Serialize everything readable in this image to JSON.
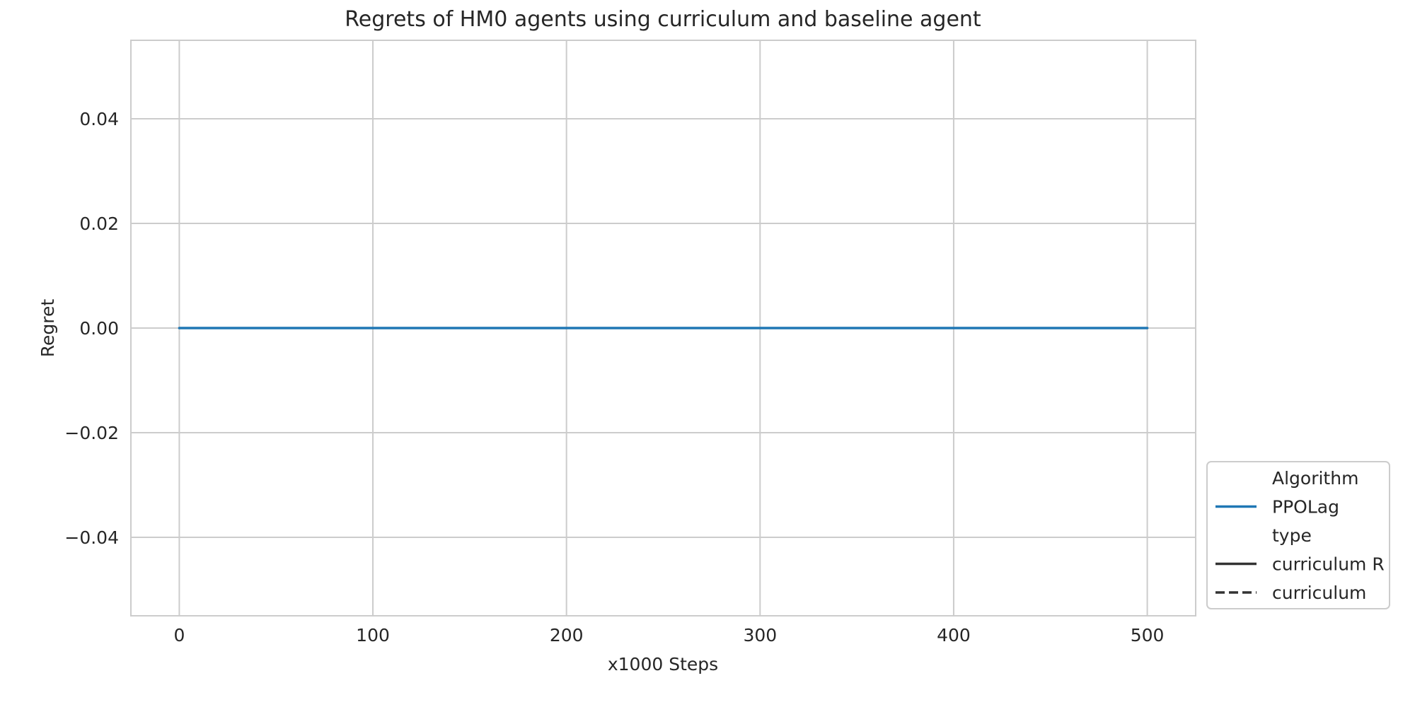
{
  "chart_data": {
    "type": "line",
    "title": "Regrets of HM0 agents using curriculum and baseline agent",
    "xlabel": "x1000 Steps",
    "ylabel": "Regret",
    "xlim": [
      -25,
      525
    ],
    "ylim": [
      -0.055,
      0.055
    ],
    "x_ticks": [
      0,
      100,
      200,
      300,
      400,
      500
    ],
    "x_tick_labels": [
      "0",
      "100",
      "200",
      "300",
      "400",
      "500"
    ],
    "y_ticks": [
      0.04,
      0.02,
      0.0,
      -0.02,
      -0.04
    ],
    "y_tick_labels": [
      "0.04",
      "0.02",
      "0.00",
      "−0.02",
      "−0.04"
    ],
    "grid": true,
    "series": [
      {
        "name": "PPOLag",
        "type": "curriculum R",
        "color": "#1f77b4",
        "x": [
          0,
          100,
          200,
          300,
          400,
          500
        ],
        "y": [
          0,
          0,
          0,
          0,
          0,
          0
        ]
      }
    ],
    "legend": {
      "placement": "lower-right-outside",
      "entries": [
        {
          "label": "Algorithm",
          "kind": "header"
        },
        {
          "label": "PPOLag",
          "kind": "line",
          "color": "#1f77b4",
          "dash": "solid"
        },
        {
          "label": "type",
          "kind": "header"
        },
        {
          "label": "curriculum R",
          "kind": "line",
          "color": "#333333",
          "dash": "solid"
        },
        {
          "label": "curriculum",
          "kind": "line",
          "color": "#333333",
          "dash": "dashed"
        }
      ]
    }
  }
}
